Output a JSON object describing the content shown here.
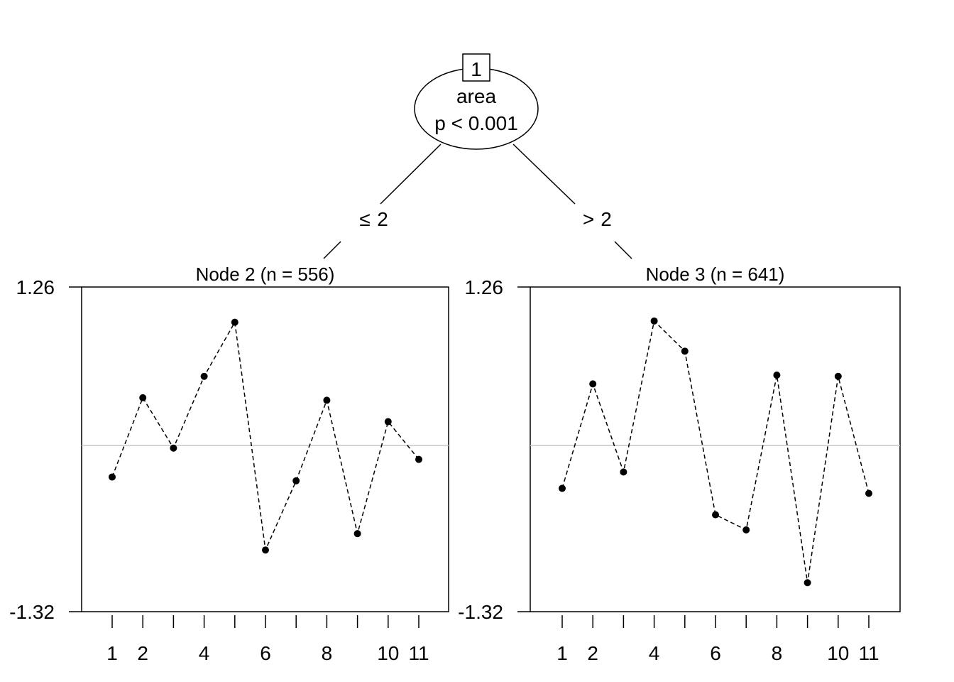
{
  "tree": {
    "root": {
      "id": "1",
      "variable": "area",
      "pvalue": "p < 0.001"
    },
    "edges": [
      {
        "label_symbol": "≤",
        "label_value": "2"
      },
      {
        "label_symbol": ">",
        "label_value": "2"
      }
    ]
  },
  "chart_data": [
    {
      "type": "line",
      "title": "Node 2 (n = 556)",
      "x": [
        1,
        2,
        3,
        4,
        5,
        6,
        7,
        8,
        9,
        10,
        11
      ],
      "xticks": [
        1,
        2,
        3,
        4,
        5,
        6,
        7,
        8,
        9,
        10,
        11
      ],
      "xtick_labels": [
        "1",
        "2",
        "",
        "4",
        "",
        "6",
        "",
        "8",
        "",
        "10",
        "11"
      ],
      "values": [
        -0.25,
        0.38,
        -0.02,
        0.55,
        0.98,
        -0.83,
        -0.28,
        0.36,
        -0.7,
        0.19,
        -0.11
      ],
      "ylim": [
        -1.32,
        1.26
      ],
      "ytick_labels": [
        "1.26",
        "-1.32"
      ],
      "reference_line": 0,
      "grid": false
    },
    {
      "type": "line",
      "title": "Node 3 (n = 641)",
      "x": [
        1,
        2,
        3,
        4,
        5,
        6,
        7,
        8,
        9,
        10,
        11
      ],
      "xticks": [
        1,
        2,
        3,
        4,
        5,
        6,
        7,
        8,
        9,
        10,
        11
      ],
      "xtick_labels": [
        "1",
        "2",
        "",
        "4",
        "",
        "6",
        "",
        "8",
        "",
        "10",
        "11"
      ],
      "values": [
        -0.34,
        0.49,
        -0.21,
        0.99,
        0.75,
        -0.55,
        -0.67,
        0.56,
        -1.09,
        0.55,
        -0.38
      ],
      "ylim": [
        -1.32,
        1.26
      ],
      "ytick_labels": [
        "1.26",
        "-1.32"
      ],
      "reference_line": 0,
      "grid": false
    }
  ],
  "colors": {
    "points": "#000000",
    "reference_line": "#c8c8c8",
    "frame": "#000000"
  }
}
